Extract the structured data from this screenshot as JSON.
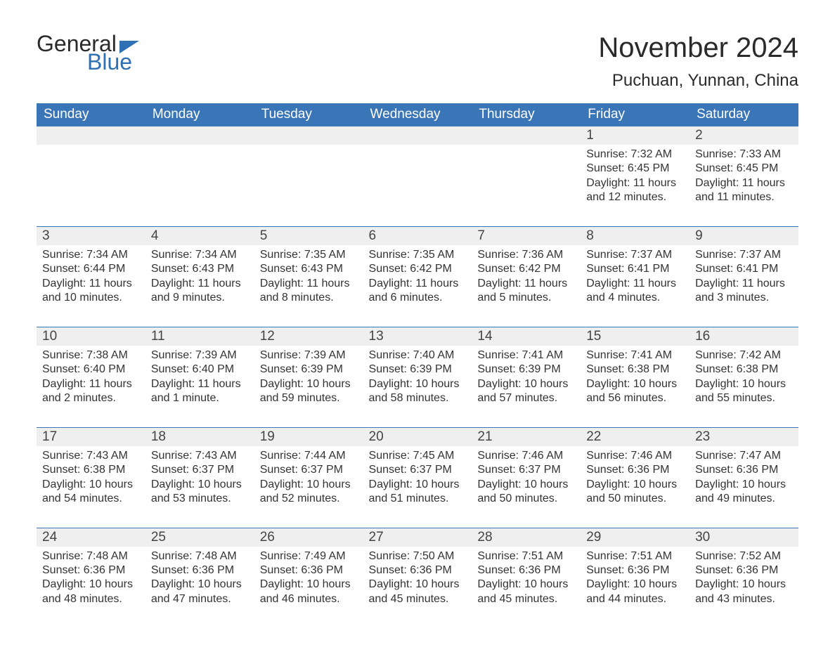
{
  "brand": {
    "word1": "General",
    "word2": "Blue"
  },
  "title": "November 2024",
  "location": "Puchuan, Yunnan, China",
  "colors": {
    "header_bg": "#3a76b7",
    "header_text": "#ffffff",
    "row_sep": "#3a76b7",
    "daynum_bg": "#efefef",
    "text": "#333333",
    "brand_blue": "#2f6fb4",
    "brand_dark": "#2a2a2a",
    "page_bg": "#ffffff"
  },
  "calendar": {
    "type": "table",
    "columns": [
      "Sunday",
      "Monday",
      "Tuesday",
      "Wednesday",
      "Thursday",
      "Friday",
      "Saturday"
    ],
    "weeks": [
      [
        null,
        null,
        null,
        null,
        null,
        {
          "n": "1",
          "sr": "Sunrise: 7:32 AM",
          "ss": "Sunset: 6:45 PM",
          "d1": "Daylight: 11 hours",
          "d2": "and 12 minutes."
        },
        {
          "n": "2",
          "sr": "Sunrise: 7:33 AM",
          "ss": "Sunset: 6:45 PM",
          "d1": "Daylight: 11 hours",
          "d2": "and 11 minutes."
        }
      ],
      [
        {
          "n": "3",
          "sr": "Sunrise: 7:34 AM",
          "ss": "Sunset: 6:44 PM",
          "d1": "Daylight: 11 hours",
          "d2": "and 10 minutes."
        },
        {
          "n": "4",
          "sr": "Sunrise: 7:34 AM",
          "ss": "Sunset: 6:43 PM",
          "d1": "Daylight: 11 hours",
          "d2": "and 9 minutes."
        },
        {
          "n": "5",
          "sr": "Sunrise: 7:35 AM",
          "ss": "Sunset: 6:43 PM",
          "d1": "Daylight: 11 hours",
          "d2": "and 8 minutes."
        },
        {
          "n": "6",
          "sr": "Sunrise: 7:35 AM",
          "ss": "Sunset: 6:42 PM",
          "d1": "Daylight: 11 hours",
          "d2": "and 6 minutes."
        },
        {
          "n": "7",
          "sr": "Sunrise: 7:36 AM",
          "ss": "Sunset: 6:42 PM",
          "d1": "Daylight: 11 hours",
          "d2": "and 5 minutes."
        },
        {
          "n": "8",
          "sr": "Sunrise: 7:37 AM",
          "ss": "Sunset: 6:41 PM",
          "d1": "Daylight: 11 hours",
          "d2": "and 4 minutes."
        },
        {
          "n": "9",
          "sr": "Sunrise: 7:37 AM",
          "ss": "Sunset: 6:41 PM",
          "d1": "Daylight: 11 hours",
          "d2": "and 3 minutes."
        }
      ],
      [
        {
          "n": "10",
          "sr": "Sunrise: 7:38 AM",
          "ss": "Sunset: 6:40 PM",
          "d1": "Daylight: 11 hours",
          "d2": "and 2 minutes."
        },
        {
          "n": "11",
          "sr": "Sunrise: 7:39 AM",
          "ss": "Sunset: 6:40 PM",
          "d1": "Daylight: 11 hours",
          "d2": "and 1 minute."
        },
        {
          "n": "12",
          "sr": "Sunrise: 7:39 AM",
          "ss": "Sunset: 6:39 PM",
          "d1": "Daylight: 10 hours",
          "d2": "and 59 minutes."
        },
        {
          "n": "13",
          "sr": "Sunrise: 7:40 AM",
          "ss": "Sunset: 6:39 PM",
          "d1": "Daylight: 10 hours",
          "d2": "and 58 minutes."
        },
        {
          "n": "14",
          "sr": "Sunrise: 7:41 AM",
          "ss": "Sunset: 6:39 PM",
          "d1": "Daylight: 10 hours",
          "d2": "and 57 minutes."
        },
        {
          "n": "15",
          "sr": "Sunrise: 7:41 AM",
          "ss": "Sunset: 6:38 PM",
          "d1": "Daylight: 10 hours",
          "d2": "and 56 minutes."
        },
        {
          "n": "16",
          "sr": "Sunrise: 7:42 AM",
          "ss": "Sunset: 6:38 PM",
          "d1": "Daylight: 10 hours",
          "d2": "and 55 minutes."
        }
      ],
      [
        {
          "n": "17",
          "sr": "Sunrise: 7:43 AM",
          "ss": "Sunset: 6:38 PM",
          "d1": "Daylight: 10 hours",
          "d2": "and 54 minutes."
        },
        {
          "n": "18",
          "sr": "Sunrise: 7:43 AM",
          "ss": "Sunset: 6:37 PM",
          "d1": "Daylight: 10 hours",
          "d2": "and 53 minutes."
        },
        {
          "n": "19",
          "sr": "Sunrise: 7:44 AM",
          "ss": "Sunset: 6:37 PM",
          "d1": "Daylight: 10 hours",
          "d2": "and 52 minutes."
        },
        {
          "n": "20",
          "sr": "Sunrise: 7:45 AM",
          "ss": "Sunset: 6:37 PM",
          "d1": "Daylight: 10 hours",
          "d2": "and 51 minutes."
        },
        {
          "n": "21",
          "sr": "Sunrise: 7:46 AM",
          "ss": "Sunset: 6:37 PM",
          "d1": "Daylight: 10 hours",
          "d2": "and 50 minutes."
        },
        {
          "n": "22",
          "sr": "Sunrise: 7:46 AM",
          "ss": "Sunset: 6:36 PM",
          "d1": "Daylight: 10 hours",
          "d2": "and 50 minutes."
        },
        {
          "n": "23",
          "sr": "Sunrise: 7:47 AM",
          "ss": "Sunset: 6:36 PM",
          "d1": "Daylight: 10 hours",
          "d2": "and 49 minutes."
        }
      ],
      [
        {
          "n": "24",
          "sr": "Sunrise: 7:48 AM",
          "ss": "Sunset: 6:36 PM",
          "d1": "Daylight: 10 hours",
          "d2": "and 48 minutes."
        },
        {
          "n": "25",
          "sr": "Sunrise: 7:48 AM",
          "ss": "Sunset: 6:36 PM",
          "d1": "Daylight: 10 hours",
          "d2": "and 47 minutes."
        },
        {
          "n": "26",
          "sr": "Sunrise: 7:49 AM",
          "ss": "Sunset: 6:36 PM",
          "d1": "Daylight: 10 hours",
          "d2": "and 46 minutes."
        },
        {
          "n": "27",
          "sr": "Sunrise: 7:50 AM",
          "ss": "Sunset: 6:36 PM",
          "d1": "Daylight: 10 hours",
          "d2": "and 45 minutes."
        },
        {
          "n": "28",
          "sr": "Sunrise: 7:51 AM",
          "ss": "Sunset: 6:36 PM",
          "d1": "Daylight: 10 hours",
          "d2": "and 45 minutes."
        },
        {
          "n": "29",
          "sr": "Sunrise: 7:51 AM",
          "ss": "Sunset: 6:36 PM",
          "d1": "Daylight: 10 hours",
          "d2": "and 44 minutes."
        },
        {
          "n": "30",
          "sr": "Sunrise: 7:52 AM",
          "ss": "Sunset: 6:36 PM",
          "d1": "Daylight: 10 hours",
          "d2": "and 43 minutes."
        }
      ]
    ]
  }
}
